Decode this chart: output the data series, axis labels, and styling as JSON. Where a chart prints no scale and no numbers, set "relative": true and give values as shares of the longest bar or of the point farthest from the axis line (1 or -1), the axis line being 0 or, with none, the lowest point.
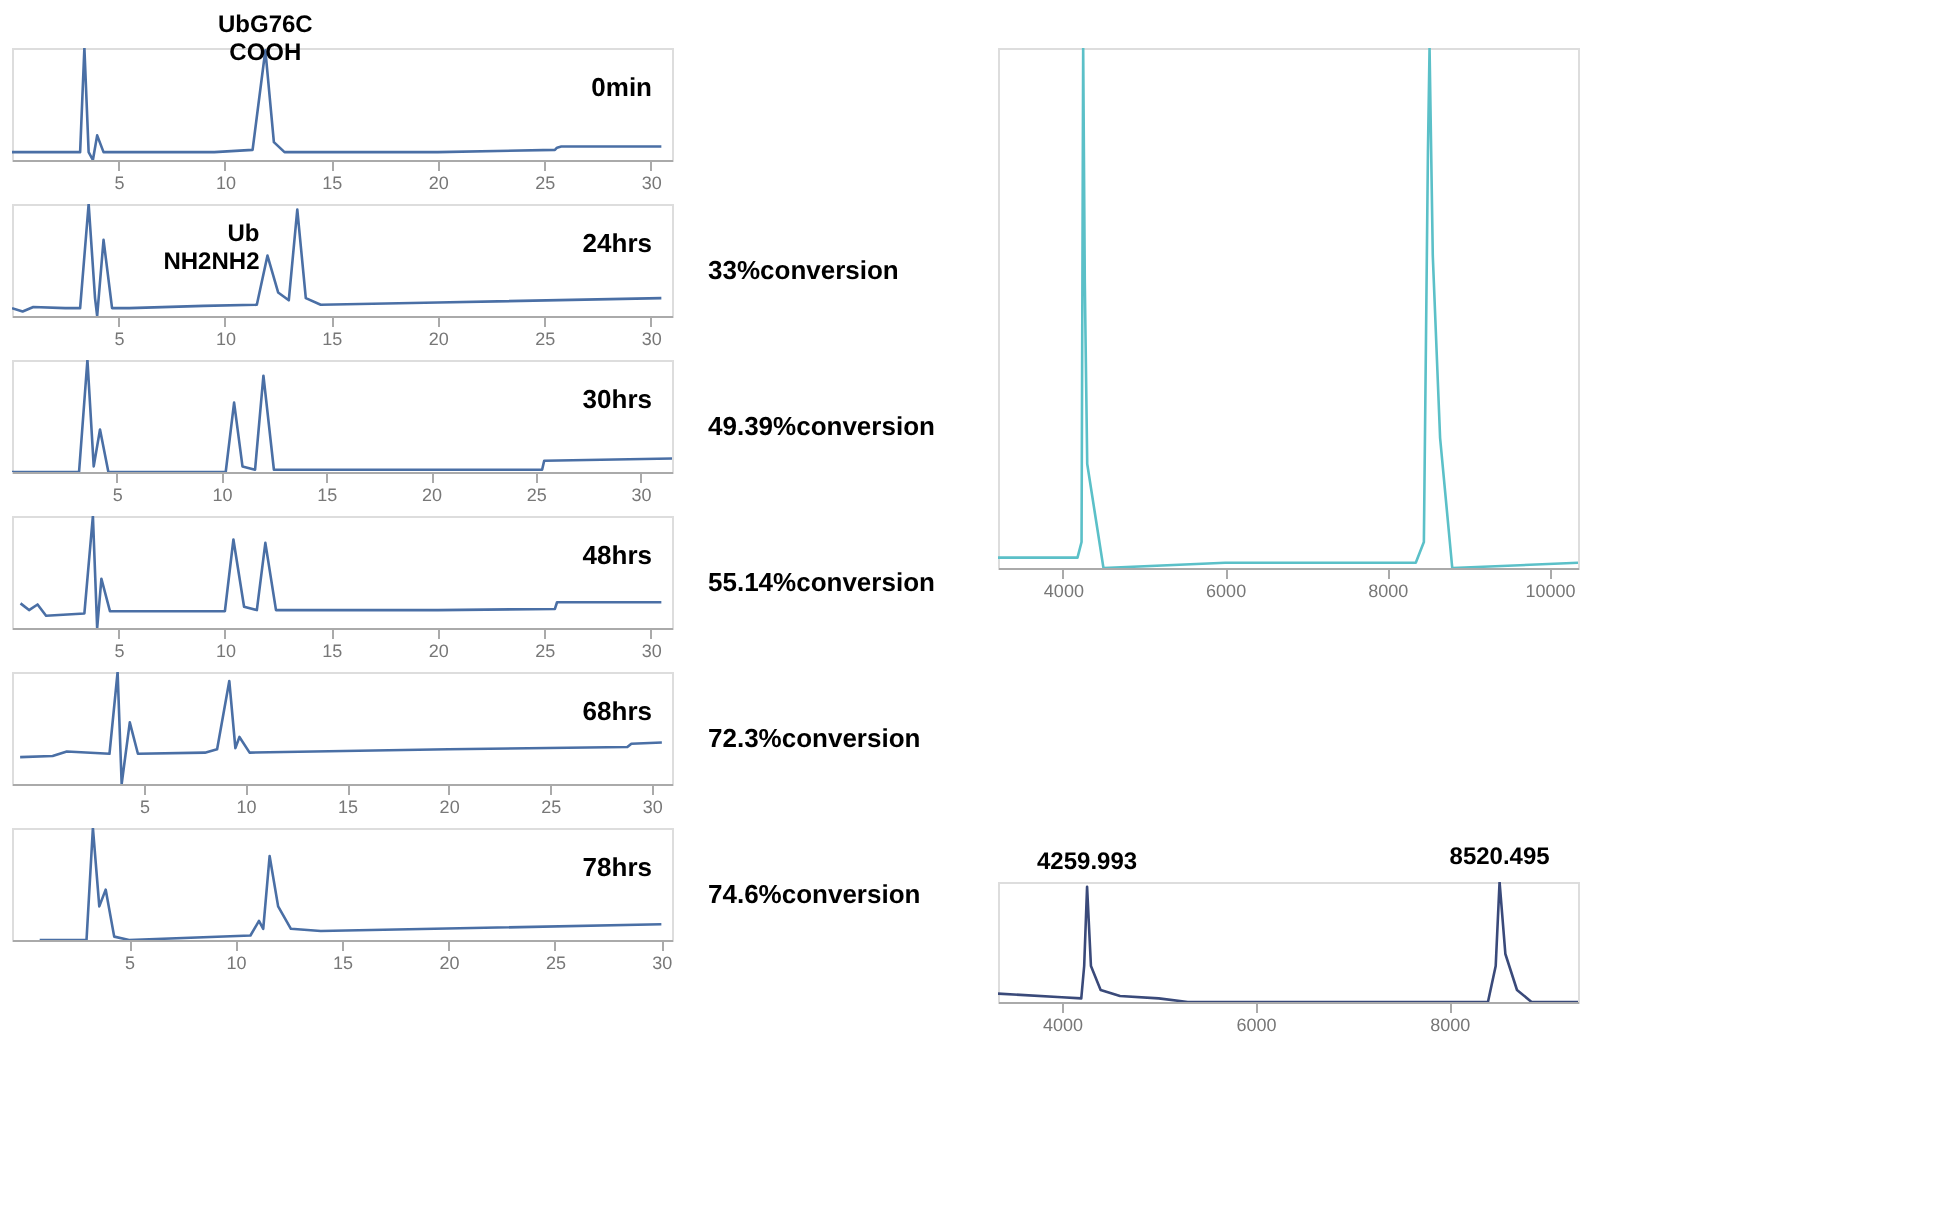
{
  "chart_data": [
    {
      "type": "line",
      "relative": true,
      "color": "#4a6fa5",
      "xlim": [
        0,
        31
      ],
      "xticks": [
        5,
        10,
        15,
        20,
        25,
        30
      ],
      "grid": false,
      "annotations": [
        "0min",
        {
          "text": "UbG76C\nCOOH",
          "x": 11.9,
          "y": 0.98
        }
      ],
      "x": [
        0,
        2.5,
        3.2,
        3.4,
        3.6,
        3.8,
        4.0,
        4.3,
        9.5,
        11.3,
        11.9,
        12.3,
        12.8,
        20,
        25.5,
        25.6,
        25.8,
        30.5
      ],
      "values": [
        0.07,
        0.07,
        0.07,
        1.0,
        0.07,
        0,
        0.22,
        0.07,
        0.07,
        0.09,
        0.98,
        0.16,
        0.07,
        0.07,
        0.09,
        0.11,
        0.12,
        0.12
      ]
    },
    {
      "type": "line",
      "relative": true,
      "color": "#4a6fa5",
      "xlim": [
        0,
        31
      ],
      "xticks": [
        5,
        10,
        15,
        20,
        25,
        30
      ],
      "grid": false,
      "annotations": [
        "24hrs",
        "33%conversion",
        {
          "text": "Ub\nNH2NH2",
          "x": 12.0,
          "y": 0.51
        }
      ],
      "x": [
        0,
        0.5,
        1.0,
        2.5,
        3.2,
        3.6,
        3.9,
        4.0,
        4.3,
        4.7,
        5.5,
        9,
        11.5,
        12.0,
        12.5,
        13.0,
        13.4,
        13.8,
        14.5,
        20,
        30.5
      ],
      "values": [
        0.07,
        0.04,
        0.08,
        0.07,
        0.07,
        1.0,
        0.16,
        0,
        0.68,
        0.07,
        0.07,
        0.09,
        0.1,
        0.54,
        0.21,
        0.14,
        0.95,
        0.16,
        0.1,
        0.12,
        0.16
      ]
    },
    {
      "type": "line",
      "relative": true,
      "color": "#4a6fa5",
      "xlim": [
        0,
        31.5
      ],
      "xticks": [
        5,
        10,
        15,
        20,
        25,
        30
      ],
      "grid": false,
      "annotations": [
        "30hrs",
        "49.39%conversion"
      ],
      "x": [
        0,
        3.2,
        3.6,
        3.9,
        4.2,
        4.6,
        10.2,
        10.6,
        11.0,
        11.6,
        12.0,
        12.5,
        20,
        25.3,
        25.4,
        31.5
      ],
      "values": [
        0,
        0,
        1.0,
        0.05,
        0.38,
        0.0,
        0.0,
        0.62,
        0.05,
        0.02,
        0.86,
        0.02,
        0.02,
        0.02,
        0.1,
        0.12
      ]
    },
    {
      "type": "line",
      "relative": true,
      "color": "#4a6fa5",
      "xlim": [
        0,
        31
      ],
      "xticks": [
        5,
        10,
        15,
        20,
        25,
        30
      ],
      "grid": false,
      "annotations": [
        "48hrs",
        "55.14%conversion"
      ],
      "x": [
        0.4,
        0.8,
        1.2,
        1.6,
        3.4,
        3.8,
        4.0,
        4.2,
        4.6,
        10.0,
        10.4,
        10.9,
        11.5,
        11.9,
        12.4,
        20,
        25.5,
        25.6,
        30.5
      ],
      "values": [
        0.22,
        0.16,
        0.21,
        0.11,
        0.13,
        1.0,
        0,
        0.44,
        0.15,
        0.15,
        0.79,
        0.19,
        0.16,
        0.76,
        0.16,
        0.16,
        0.17,
        0.23,
        0.23
      ]
    },
    {
      "type": "line",
      "relative": true,
      "color": "#4a6fa5",
      "xlim": [
        -1.5,
        31
      ],
      "xticks": [
        5,
        10,
        15,
        20,
        25,
        30
      ],
      "grid": false,
      "annotations": [
        "68hrs",
        "72.3%conversion"
      ],
      "x": [
        -1.1,
        0.5,
        1.2,
        3.3,
        3.7,
        3.9,
        4.3,
        4.7,
        8.0,
        8.6,
        9.2,
        9.5,
        9.7,
        10.2,
        20,
        28.8,
        29.0,
        30.5
      ],
      "values": [
        0.24,
        0.25,
        0.29,
        0.27,
        1.0,
        0,
        0.55,
        0.27,
        0.28,
        0.31,
        0.92,
        0.32,
        0.42,
        0.28,
        0.31,
        0.33,
        0.36,
        0.37
      ]
    },
    {
      "type": "line",
      "relative": true,
      "color": "#4a6fa5",
      "xlim": [
        -0.5,
        30.5
      ],
      "xticks": [
        5,
        10,
        15,
        20,
        25,
        30
      ],
      "grid": false,
      "annotations": [
        "78hrs",
        "74.6%conversion"
      ],
      "x": [
        0.8,
        3.0,
        3.3,
        3.6,
        3.9,
        4.3,
        5,
        10.7,
        11.1,
        11.3,
        11.6,
        12.0,
        12.6,
        14,
        30
      ],
      "values": [
        0.0,
        0.0,
        1.0,
        0.3,
        0.45,
        0.03,
        0.0,
        0.04,
        0.17,
        0.1,
        0.75,
        0.3,
        0.1,
        0.08,
        0.14
      ]
    },
    {
      "type": "line",
      "relative": true,
      "color": "#5bc0c8",
      "xlim": [
        3200,
        10350
      ],
      "xticks": [
        4000,
        6000,
        8000,
        10000
      ],
      "grid": false,
      "x": [
        3200,
        4180,
        4230,
        4250,
        4270,
        4300,
        4400,
        4500,
        6000,
        8350,
        8450,
        8500,
        8520,
        8560,
        8650,
        8800,
        10350
      ],
      "values": [
        0.02,
        0.02,
        0.05,
        1.0,
        0.55,
        0.2,
        0.1,
        0.0,
        0.01,
        0.01,
        0.05,
        0.8,
        1.0,
        0.6,
        0.25,
        0.0,
        0.01
      ]
    },
    {
      "type": "line",
      "relative": true,
      "color": "#3a4a7a",
      "xlim": [
        3340,
        9330
      ],
      "xticks": [
        4000,
        6000,
        8000
      ],
      "grid": false,
      "annotations": [
        {
          "text": "4259.993",
          "x": 4259.993,
          "y": 0.96
        },
        {
          "text": "8520.495",
          "x": 8520.495,
          "y": 1.0
        }
      ],
      "x": [
        3340,
        4000,
        4200,
        4230,
        4260,
        4300,
        4400,
        4600,
        5000,
        5300,
        8400,
        8480,
        8520,
        8580,
        8700,
        8850,
        9330
      ],
      "values": [
        0.07,
        0.04,
        0.03,
        0.3,
        0.96,
        0.3,
        0.1,
        0.05,
        0.03,
        0.0,
        0.0,
        0.3,
        1.0,
        0.4,
        0.1,
        0.0,
        0.0
      ]
    }
  ]
}
